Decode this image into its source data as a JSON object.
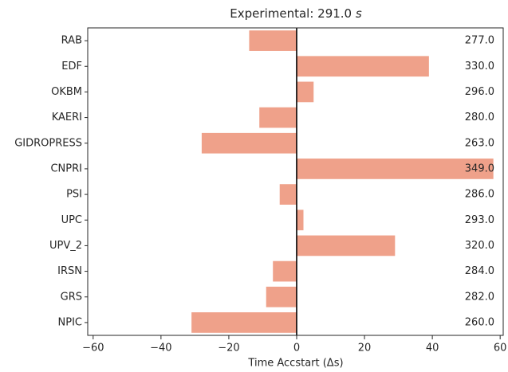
{
  "chart_data": {
    "type": "hbar",
    "title": "Experimental: 291.0",
    "title_unit": "s",
    "xlabel": "Time Accstart (Δs)",
    "categories": [
      "RAB",
      "EDF",
      "OKBM",
      "KAERI",
      "GIDROPRESS",
      "CNPRI",
      "PSI",
      "UPC",
      "UPV_2",
      "IRSN",
      "GRS",
      "NPIC"
    ],
    "values": [
      -14,
      39,
      5,
      -11,
      -28,
      58,
      -5,
      2,
      29,
      -7,
      -9,
      -31
    ],
    "results": [
      {
        "value": 277,
        "label": "277.0"
      },
      {
        "value": 330,
        "label": "330.0"
      },
      {
        "value": 296,
        "label": "296.0"
      },
      {
        "value": 280,
        "label": "280.0"
      },
      {
        "value": 263,
        "label": "263.0"
      },
      {
        "value": 349,
        "label": "349.0"
      },
      {
        "value": 286,
        "label": "286.0"
      },
      {
        "value": 293,
        "label": "293.0"
      },
      {
        "value": 320,
        "label": "320.0"
      },
      {
        "value": 284,
        "label": "284.0"
      },
      {
        "value": 282,
        "label": "282.0"
      },
      {
        "value": 260,
        "label": "260.0"
      }
    ],
    "color": "#efa18a",
    "xlim": [
      -61.6,
      60.9
    ],
    "xticks": [
      {
        "value": -60,
        "label": "−60"
      },
      {
        "value": -40,
        "label": "−40"
      },
      {
        "value": -20,
        "label": "−20"
      },
      0,
      20,
      40,
      60
    ]
  }
}
